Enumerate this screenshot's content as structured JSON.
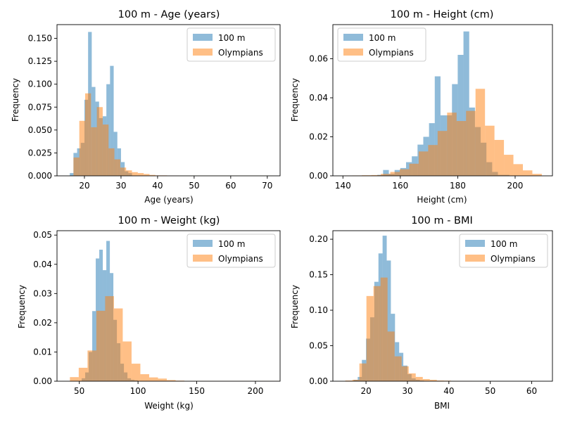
{
  "colors": {
    "c100m": "#1f77b4",
    "olympians": "#ff7f0e"
  },
  "chart_data": [
    {
      "type": "histogram",
      "title": "100 m - Age (years)",
      "xlabel": "Age (years)",
      "ylabel": "Frequency",
      "xlim": [
        12.5,
        73.5
      ],
      "ylim": [
        0,
        0.165
      ],
      "xticks": [
        20,
        30,
        40,
        50,
        60,
        70
      ],
      "yticks": [
        0.0,
        0.025,
        0.05,
        0.075,
        0.1,
        0.125,
        0.15
      ],
      "ytick_labels": [
        "0.000",
        "0.025",
        "0.050",
        "0.075",
        "0.100",
        "0.125",
        "0.150"
      ],
      "legend": "top-right",
      "series": [
        {
          "name": "100 m",
          "bin_start": 16,
          "bin_width": 1,
          "values": [
            0.003,
            0.025,
            0.03,
            0.036,
            0.083,
            0.157,
            0.097,
            0.081,
            0.063,
            0.065,
            0.1,
            0.12,
            0.048,
            0.03,
            0.015,
            0.005,
            0.003
          ]
        },
        {
          "name": "Olympians",
          "bin_start": 17,
          "bin_width": 1.6,
          "values": [
            0.02,
            0.06,
            0.09,
            0.053,
            0.075,
            0.056,
            0.03,
            0.018,
            0.009,
            0.006,
            0.004,
            0.003,
            0.002,
            0.001,
            0.0005,
            0.0005,
            0.0003,
            0.0002,
            0.0001,
            0.0001,
            0.0001,
            0.0001,
            0.0001,
            0.0001,
            0.0001,
            0.0001,
            0.0001,
            0.0001,
            0.0001,
            0.0001,
            0.0001,
            0.0001,
            0.0001,
            0.0001
          ]
        }
      ]
    },
    {
      "type": "histogram",
      "title": "100 m - Height (cm)",
      "xlabel": "Height (cm)",
      "ylabel": "Frequency",
      "xlim": [
        136.5,
        213
      ],
      "ylim": [
        0,
        0.0775
      ],
      "xticks": [
        140,
        160,
        180,
        200
      ],
      "yticks": [
        0.0,
        0.02,
        0.04,
        0.06
      ],
      "ytick_labels": [
        "0.00",
        "0.02",
        "0.04",
        "0.06"
      ],
      "legend": "top-left",
      "series": [
        {
          "name": "100 m",
          "bin_start": 152,
          "bin_width": 2,
          "values": [
            0.0005,
            0.003,
            0.001,
            0.003,
            0.004,
            0.007,
            0.01,
            0.016,
            0.02,
            0.027,
            0.051,
            0.031,
            0.031,
            0.047,
            0.062,
            0.074,
            0.035,
            0.025,
            0.017,
            0.007,
            0.002,
            0.0005,
            0.0005
          ]
        },
        {
          "name": "Olympians",
          "bin_start": 140,
          "bin_width": 3.3,
          "values": [
            0.0001,
            0.0002,
            0.0003,
            0.0004,
            0.001,
            0.002,
            0.0034,
            0.0062,
            0.0125,
            0.0158,
            0.023,
            0.0324,
            0.0281,
            0.0333,
            0.0446,
            0.0257,
            0.0184,
            0.0108,
            0.006,
            0.0028,
            0.001
          ]
        }
      ]
    },
    {
      "type": "histogram",
      "title": "100 m - Weight (kg)",
      "xlabel": "Weight (kg)",
      "ylabel": "Frequency",
      "xlim": [
        31,
        221
      ],
      "ylim": [
        0,
        0.0515
      ],
      "xticks": [
        50,
        100,
        150,
        200
      ],
      "yticks": [
        0.0,
        0.01,
        0.02,
        0.03,
        0.04,
        0.05
      ],
      "ytick_labels": [
        "0.00",
        "0.01",
        "0.02",
        "0.03",
        "0.04",
        "0.05"
      ],
      "legend": "top-right",
      "series": [
        {
          "name": "100 m",
          "bin_start": 52,
          "bin_width": 3,
          "values": [
            0.001,
            0.003,
            0.01,
            0.024,
            0.042,
            0.045,
            0.038,
            0.048,
            0.037,
            0.021,
            0.013,
            0.006,
            0.003,
            0.001,
            0.0005,
            0.0003
          ]
        },
        {
          "name": "Olympians",
          "bin_start": 42,
          "bin_width": 7.5,
          "values": [
            0.0014,
            0.0046,
            0.0105,
            0.0241,
            0.0291,
            0.0249,
            0.0136,
            0.006,
            0.0024,
            0.0013,
            0.0009,
            0.0004,
            0.0002,
            0.0001,
            0.0001,
            0.0001,
            0.0001,
            0.0001,
            0.0001,
            0.0001,
            0.0001,
            0.0001,
            0.0001,
            0.0001
          ]
        }
      ]
    },
    {
      "type": "histogram",
      "title": "100 m - BMI",
      "xlabel": "BMI",
      "ylabel": "Frequency",
      "xlim": [
        12,
        65
      ],
      "ylim": [
        0,
        0.212
      ],
      "xticks": [
        20,
        30,
        40,
        50,
        60
      ],
      "yticks": [
        0.0,
        0.05,
        0.1,
        0.15,
        0.2
      ],
      "ytick_labels": [
        "0.00",
        "0.05",
        "0.10",
        "0.15",
        "0.20"
      ],
      "legend": "top-right",
      "series": [
        {
          "name": "100 m",
          "bin_start": 17,
          "bin_width": 1,
          "values": [
            0.002,
            0.006,
            0.03,
            0.06,
            0.09,
            0.14,
            0.18,
            0.205,
            0.17,
            0.095,
            0.055,
            0.04,
            0.022,
            0.01,
            0.004,
            0.002,
            0.001
          ]
        },
        {
          "name": "Olympians",
          "bin_start": 15,
          "bin_width": 1.7,
          "values": [
            0.001,
            0.002,
            0.025,
            0.12,
            0.134,
            0.146,
            0.07,
            0.035,
            0.021,
            0.011,
            0.006,
            0.003,
            0.002,
            0.001,
            0.0008,
            0.0005,
            0.0004,
            0.0003,
            0.0002,
            0.0001,
            0.0001,
            0.0001,
            0.0001,
            0.0001,
            0.0001,
            0.0001,
            0.0001,
            0.0001,
            0.0001
          ]
        }
      ]
    }
  ]
}
